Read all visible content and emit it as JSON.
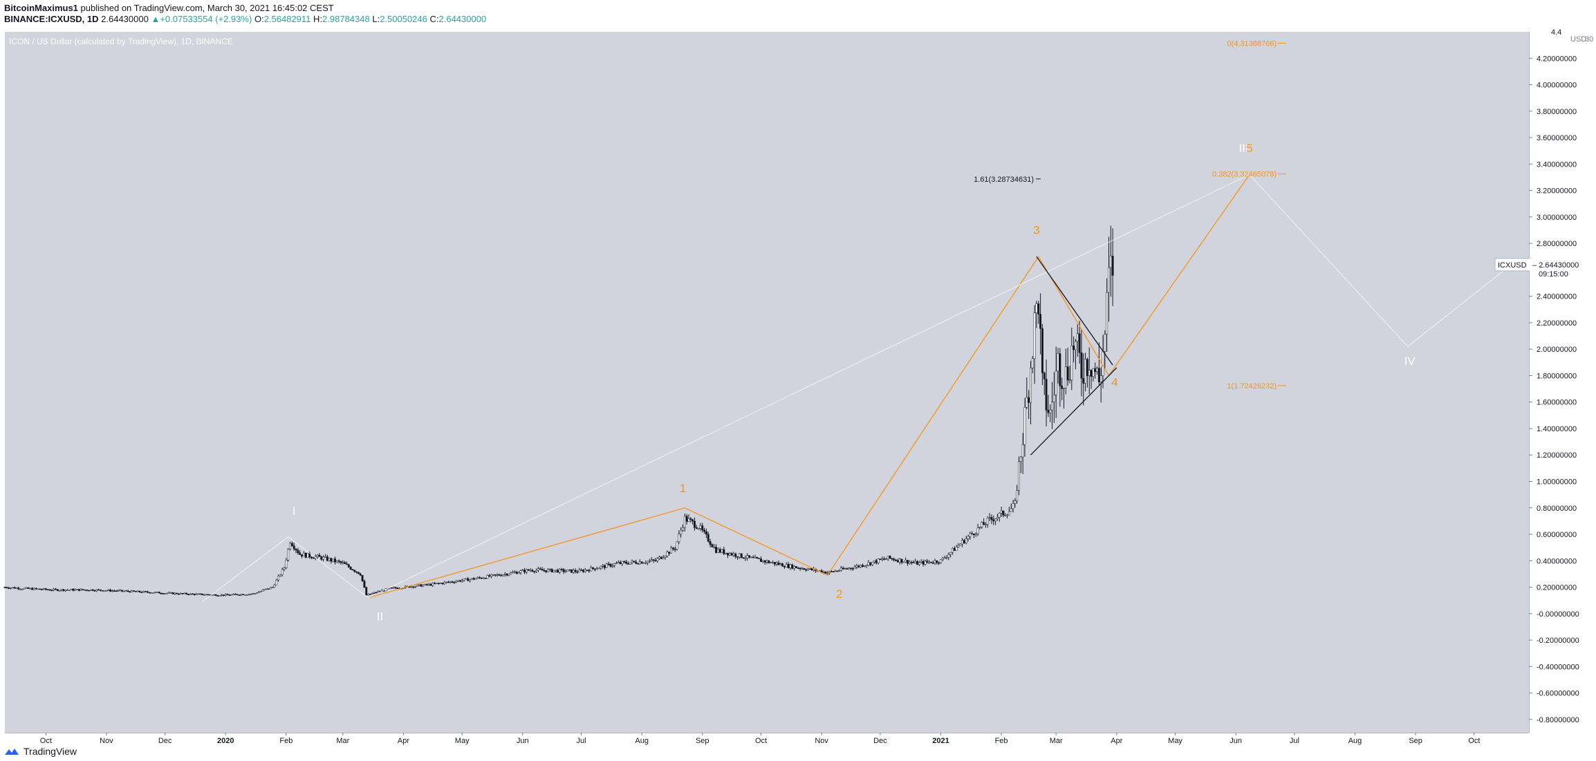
{
  "header": {
    "author": "BitcoinMaximus1",
    "published": "published on TradingView.com, March 30, 2021 16:45:02 CEST",
    "symbol": "BINANCE:ICXUSD, 1D",
    "last": "2.64430000",
    "change_arrow": "▲",
    "change": "+0.07533554 (+2.93%)",
    "o_label": "O:",
    "o_value": "2.56482911",
    "h_label": "H:",
    "h_value": "2.98784348",
    "l_label": "L:",
    "l_value": "2.50050246",
    "c_label": "C:",
    "c_value": "2.64430000"
  },
  "footer": {
    "brand": "TradingView"
  },
  "colors": {
    "background": "#d1d4dc",
    "orange": "#f7931a",
    "candle": "#131722",
    "white_wave": "#ffffff",
    "up": "#26a69a"
  },
  "chart_data": {
    "type": "candlestick",
    "title": "ICON / US Dollar (calculated by TradingView), 1D, BINANCE",
    "symbol": "ICXUSD",
    "ylim": [
      -0.9,
      4.4
    ],
    "y_ticks": [
      "4.4",
      "4.20000000",
      "4.00000000",
      "3.80000000",
      "3.60000000",
      "3.40000000",
      "3.20000000",
      "3.00000000",
      "2.80000000",
      "2.60000000",
      "2.40000000",
      "2.20000000",
      "2.00000000",
      "1.80000000",
      "1.60000000",
      "1.40000000",
      "1.20000000",
      "1.00000000",
      "0.80000000",
      "0.60000000",
      "0.40000000",
      "0.20000000",
      "-0.00000000",
      "-0.20000000",
      "-0.40000000",
      "-0.60000000",
      "-0.80000000"
    ],
    "y_tick_values": [
      4.4,
      4.2,
      4.0,
      3.8,
      3.6,
      3.4,
      3.2,
      3.0,
      2.8,
      2.6,
      2.4,
      2.2,
      2.0,
      1.8,
      1.6,
      1.4,
      1.2,
      1.0,
      0.8,
      0.6,
      0.4,
      0.2,
      0.0,
      -0.2,
      -0.4,
      -0.6,
      -0.8
    ],
    "axis_currency": "USD",
    "axis_extra": "30",
    "xlim": [
      "2019-09-10",
      "2021-10-29"
    ],
    "x_ticks": [
      {
        "date": "2019-10-01",
        "label": "Oct",
        "bold": false
      },
      {
        "date": "2019-11-01",
        "label": "Nov",
        "bold": false
      },
      {
        "date": "2019-12-01",
        "label": "Dec",
        "bold": false
      },
      {
        "date": "2020-01-01",
        "label": "2020",
        "bold": true
      },
      {
        "date": "2020-02-01",
        "label": "Feb",
        "bold": false
      },
      {
        "date": "2020-03-01",
        "label": "Mar",
        "bold": false
      },
      {
        "date": "2020-04-01",
        "label": "Apr",
        "bold": false
      },
      {
        "date": "2020-05-01",
        "label": "May",
        "bold": false
      },
      {
        "date": "2020-06-01",
        "label": "Jun",
        "bold": false
      },
      {
        "date": "2020-07-01",
        "label": "Jul",
        "bold": false
      },
      {
        "date": "2020-08-01",
        "label": "Aug",
        "bold": false
      },
      {
        "date": "2020-09-01",
        "label": "Sep",
        "bold": false
      },
      {
        "date": "2020-10-01",
        "label": "Oct",
        "bold": false
      },
      {
        "date": "2020-11-01",
        "label": "Nov",
        "bold": false
      },
      {
        "date": "2020-12-01",
        "label": "Dec",
        "bold": false
      },
      {
        "date": "2021-01-01",
        "label": "2021",
        "bold": true
      },
      {
        "date": "2021-02-01",
        "label": "Feb",
        "bold": false
      },
      {
        "date": "2021-03-01",
        "label": "Mar",
        "bold": false
      },
      {
        "date": "2021-04-01",
        "label": "Apr",
        "bold": false
      },
      {
        "date": "2021-05-01",
        "label": "May",
        "bold": false
      },
      {
        "date": "2021-06-01",
        "label": "Jun",
        "bold": false
      },
      {
        "date": "2021-07-01",
        "label": "Jul",
        "bold": false
      },
      {
        "date": "2021-08-01",
        "label": "Aug",
        "bold": false
      },
      {
        "date": "2021-09-01",
        "label": "Sep",
        "bold": false
      },
      {
        "date": "2021-10-01",
        "label": "Oct",
        "bold": false
      }
    ],
    "price_path": [
      [
        "2019-09-10",
        0.2
      ],
      [
        "2019-09-20",
        0.19
      ],
      [
        "2019-10-05",
        0.18
      ],
      [
        "2019-10-25",
        0.18
      ],
      [
        "2019-11-10",
        0.17
      ],
      [
        "2019-11-25",
        0.16
      ],
      [
        "2019-12-10",
        0.15
      ],
      [
        "2019-12-31",
        0.14
      ],
      [
        "2020-01-15",
        0.15
      ],
      [
        "2020-01-25",
        0.2
      ],
      [
        "2020-01-31",
        0.35
      ],
      [
        "2020-02-03",
        0.55
      ],
      [
        "2020-02-08",
        0.45
      ],
      [
        "2020-02-20",
        0.42
      ],
      [
        "2020-03-01",
        0.38
      ],
      [
        "2020-03-10",
        0.3
      ],
      [
        "2020-03-13",
        0.14
      ],
      [
        "2020-03-25",
        0.19
      ],
      [
        "2020-04-15",
        0.22
      ],
      [
        "2020-05-10",
        0.27
      ],
      [
        "2020-06-05",
        0.33
      ],
      [
        "2020-06-30",
        0.32
      ],
      [
        "2020-07-20",
        0.38
      ],
      [
        "2020-08-08",
        0.4
      ],
      [
        "2020-08-18",
        0.5
      ],
      [
        "2020-08-23",
        0.72
      ],
      [
        "2020-08-30",
        0.66
      ],
      [
        "2020-09-08",
        0.48
      ],
      [
        "2020-09-25",
        0.42
      ],
      [
        "2020-10-15",
        0.36
      ],
      [
        "2020-11-01",
        0.32
      ],
      [
        "2020-11-04",
        0.31
      ],
      [
        "2020-11-20",
        0.36
      ],
      [
        "2020-12-05",
        0.42
      ],
      [
        "2020-12-20",
        0.38
      ],
      [
        "2021-01-01",
        0.4
      ],
      [
        "2021-01-15",
        0.58
      ],
      [
        "2021-01-25",
        0.7
      ],
      [
        "2021-02-05",
        0.78
      ],
      [
        "2021-02-08",
        0.82
      ],
      [
        "2021-02-10",
        1.1
      ],
      [
        "2021-02-14",
        1.6
      ],
      [
        "2021-02-17",
        2.05
      ],
      [
        "2021-02-20",
        2.4
      ],
      [
        "2021-02-22",
        1.7
      ],
      [
        "2021-02-26",
        1.5
      ],
      [
        "2021-03-02",
        1.9
      ],
      [
        "2021-03-06",
        1.8
      ],
      [
        "2021-03-10",
        2.05
      ],
      [
        "2021-03-14",
        1.85
      ],
      [
        "2021-03-18",
        1.95
      ],
      [
        "2021-03-23",
        1.75
      ],
      [
        "2021-03-26",
        2.1
      ],
      [
        "2021-03-28",
        2.5
      ],
      [
        "2021-03-30",
        2.64
      ]
    ],
    "series": [
      {
        "name": "",
        "color": "#f7931a",
        "points": [
          [
            "2020-03-14",
            0.12
          ],
          [
            "2020-08-23",
            0.8
          ],
          [
            "2020-11-04",
            0.29
          ],
          [
            "2021-02-20",
            2.7
          ],
          [
            "2021-03-28",
            1.8
          ],
          [
            "2021-06-08",
            3.32
          ]
        ]
      },
      {
        "name": "",
        "color": "#ffffff",
        "points": [
          [
            "2019-12-20",
            0.09
          ],
          [
            "2020-02-02",
            0.58
          ],
          [
            "2020-03-14",
            0.12
          ],
          [
            "2021-06-08",
            3.32
          ],
          [
            "2021-08-28",
            2.02
          ],
          [
            "2021-10-20",
            2.64
          ]
        ]
      },
      {
        "name": "",
        "color": "#131722",
        "points": [
          [
            "2021-02-19",
            2.7
          ],
          [
            "2021-03-30",
            1.88
          ]
        ]
      },
      {
        "name": "",
        "color": "#131722",
        "points": [
          [
            "2021-02-16",
            1.2
          ],
          [
            "2021-04-01",
            1.86
          ]
        ]
      }
    ],
    "wave_labels": [
      {
        "text": "I",
        "date": "2020-02-05",
        "y": 0.75,
        "color": "#ffffff"
      },
      {
        "text": "II",
        "date": "2020-03-20",
        "y": -0.05,
        "color": "#ffffff"
      },
      {
        "text": "1",
        "date": "2020-08-22",
        "y": 0.92,
        "color": "#f7931a"
      },
      {
        "text": "2",
        "date": "2020-11-10",
        "y": 0.12,
        "color": "#f7931a"
      },
      {
        "text": "3",
        "date": "2021-02-19",
        "y": 2.87,
        "color": "#f7931a"
      },
      {
        "text": "4",
        "date": "2021-03-31",
        "y": 1.72,
        "color": "#f7931a"
      },
      {
        "text": "III",
        "date": "2021-06-05",
        "y": 3.49,
        "color": "#ffffff"
      },
      {
        "text": "5",
        "date": "2021-06-08",
        "y": 3.49,
        "color": "#f7931a"
      },
      {
        "text": "IV",
        "date": "2021-08-29",
        "y": 1.88,
        "color": "#ffffff"
      }
    ],
    "fib_levels": [
      {
        "label": "0(4.31388766)",
        "value": 4.31388766,
        "color": "#f7931a"
      },
      {
        "label": "0.382(3.32465078)",
        "value": 3.32465078,
        "color": "#f7931a"
      },
      {
        "label": "1(1.72426232)",
        "value": 1.72426232,
        "color": "#f7931a"
      }
    ],
    "fib_extension": {
      "label": "1.61(3.28734631)",
      "value": 3.28734631,
      "color": "#131722"
    },
    "current_price": {
      "symbol": "ICXUSD",
      "value": "2.64430000",
      "countdown": "09:15:00",
      "y": 2.6443
    }
  }
}
